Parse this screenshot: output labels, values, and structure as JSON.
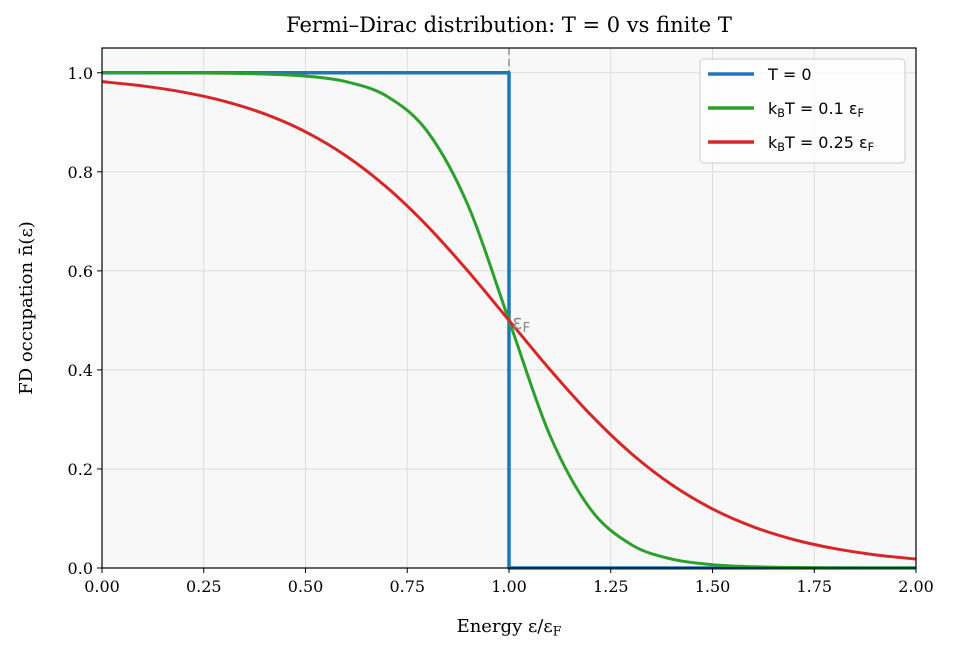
{
  "chart_data": {
    "type": "line",
    "title": "Fermi–Dirac distribution: T = 0 vs finite T",
    "xlabel": "Energy ε/ε_F",
    "ylabel": "FD occupation n̄(ε)",
    "xlim": [
      0,
      2
    ],
    "ylim": [
      0,
      1.05
    ],
    "xticks": [
      "0.00",
      "0.25",
      "0.50",
      "0.75",
      "1.00",
      "1.25",
      "1.50",
      "1.75",
      "2.00"
    ],
    "yticks": [
      "0.0",
      "0.2",
      "0.4",
      "0.6",
      "0.8",
      "1.0"
    ],
    "grid": true,
    "legend_position": "top-right",
    "annotation": {
      "text": "ε_F",
      "x": 1.03,
      "y": 0.5
    },
    "reference_line": {
      "x": 1.0,
      "style": "dashed",
      "color": "#aaaaaa"
    },
    "series": [
      {
        "name": "T = 0",
        "color": "#1f77b4",
        "step": true,
        "x": [
          0,
          1,
          1,
          2
        ],
        "y": [
          1,
          1,
          0,
          0
        ]
      },
      {
        "name": "k_BT = 0.1 ε_F",
        "color": "#2ca02c",
        "x": [
          0,
          0.1,
          0.2,
          0.3,
          0.4,
          0.5,
          0.6,
          0.7,
          0.8,
          0.9,
          1.0,
          1.1,
          1.2,
          1.3,
          1.4,
          1.5,
          1.6,
          1.7,
          1.8,
          1.9,
          2.0
        ],
        "y": [
          1.0,
          0.9999,
          0.9997,
          0.9991,
          0.9975,
          0.9933,
          0.982,
          0.9526,
          0.8808,
          0.7311,
          0.5,
          0.2689,
          0.1192,
          0.0474,
          0.018,
          0.0067,
          0.0025,
          0.0009,
          0.0003,
          0.0001,
          0.0
        ]
      },
      {
        "name": "k_BT = 0.25 ε_F",
        "color": "#d62728",
        "x": [
          0,
          0.1,
          0.2,
          0.3,
          0.4,
          0.5,
          0.6,
          0.7,
          0.8,
          0.9,
          1.0,
          1.1,
          1.2,
          1.3,
          1.4,
          1.5,
          1.6,
          1.7,
          1.8,
          1.9,
          2.0
        ],
        "y": [
          0.982,
          0.9734,
          0.9608,
          0.9427,
          0.9168,
          0.8808,
          0.832,
          0.7685,
          0.69,
          0.5987,
          0.5,
          0.4013,
          0.31,
          0.2315,
          0.168,
          0.1192,
          0.0832,
          0.0573,
          0.0392,
          0.0266,
          0.018
        ]
      }
    ]
  }
}
